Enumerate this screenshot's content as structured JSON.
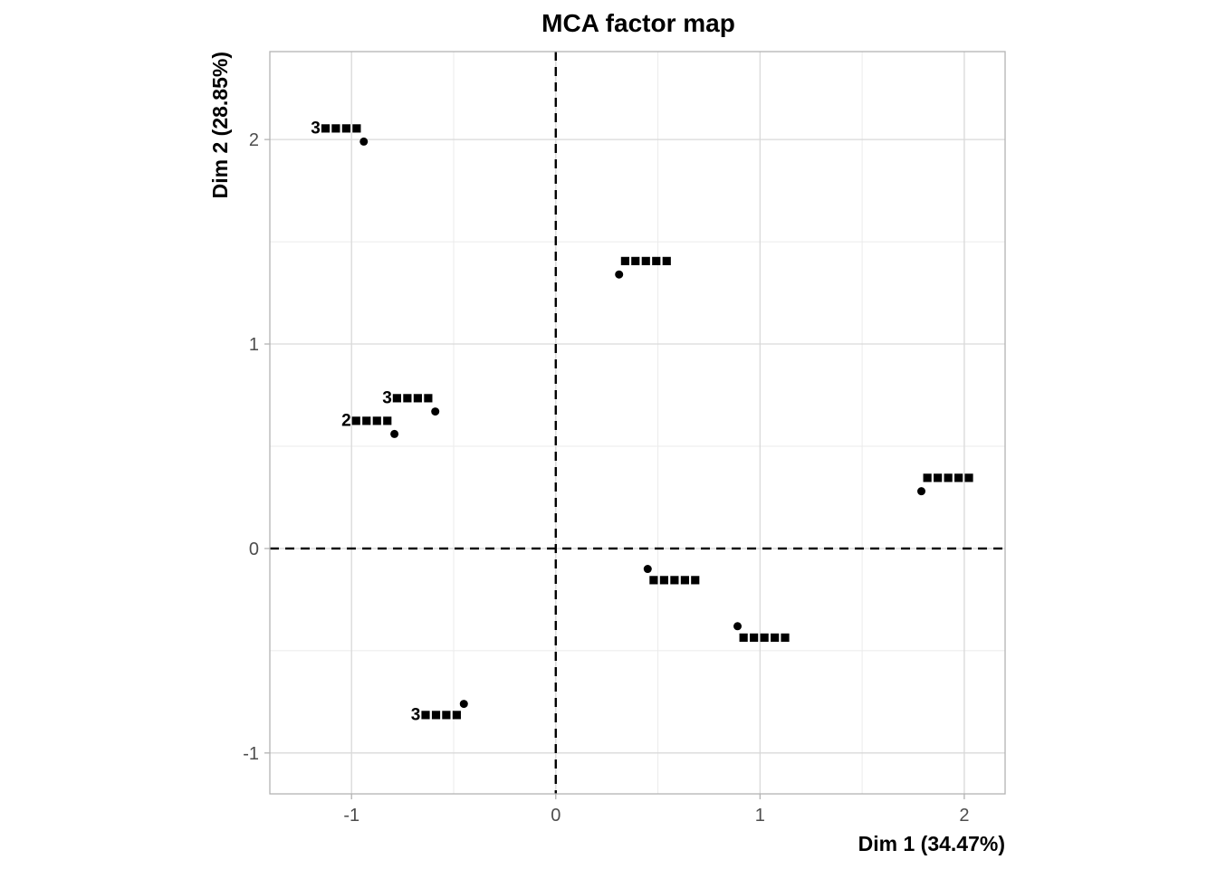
{
  "chart_data": {
    "type": "scatter",
    "title": "MCA factor map",
    "xlabel": "Dim 1 (34.47%)",
    "ylabel": "Dim 2 (28.85%)",
    "xlim": [
      -1.4,
      2.2
    ],
    "ylim": [
      -1.2,
      2.43
    ],
    "xticks": [
      -1,
      0,
      1,
      2
    ],
    "xtick_labels": [
      "-1",
      "0",
      "1",
      "2"
    ],
    "yticks": [
      -1,
      0,
      1,
      2
    ],
    "ytick_labels": [
      "-1",
      "0",
      "1",
      "2"
    ],
    "grid": true,
    "reference_lines": {
      "x": 0,
      "y": 0,
      "style": "dashed"
    },
    "point_color": "#000000",
    "points": [
      {
        "x": -0.94,
        "y": 1.99,
        "label": "3■■■■",
        "label_pos": "upper-left"
      },
      {
        "x": 0.31,
        "y": 1.34,
        "label": "■■■■■",
        "label_pos": "upper-right"
      },
      {
        "x": -0.59,
        "y": 0.67,
        "label": "3■■■■",
        "label_pos": "upper-left"
      },
      {
        "x": -0.79,
        "y": 0.56,
        "label": "2■■■■",
        "label_pos": "upper-left"
      },
      {
        "x": 1.79,
        "y": 0.28,
        "label": "■■■■■",
        "label_pos": "upper-right"
      },
      {
        "x": 0.45,
        "y": -0.1,
        "label": "■■■■■",
        "label_pos": "lower-right"
      },
      {
        "x": 0.89,
        "y": -0.38,
        "label": "■■■■■",
        "label_pos": "lower-right"
      },
      {
        "x": -0.45,
        "y": -0.76,
        "label": "3■■■■",
        "label_pos": "lower-left"
      }
    ]
  }
}
